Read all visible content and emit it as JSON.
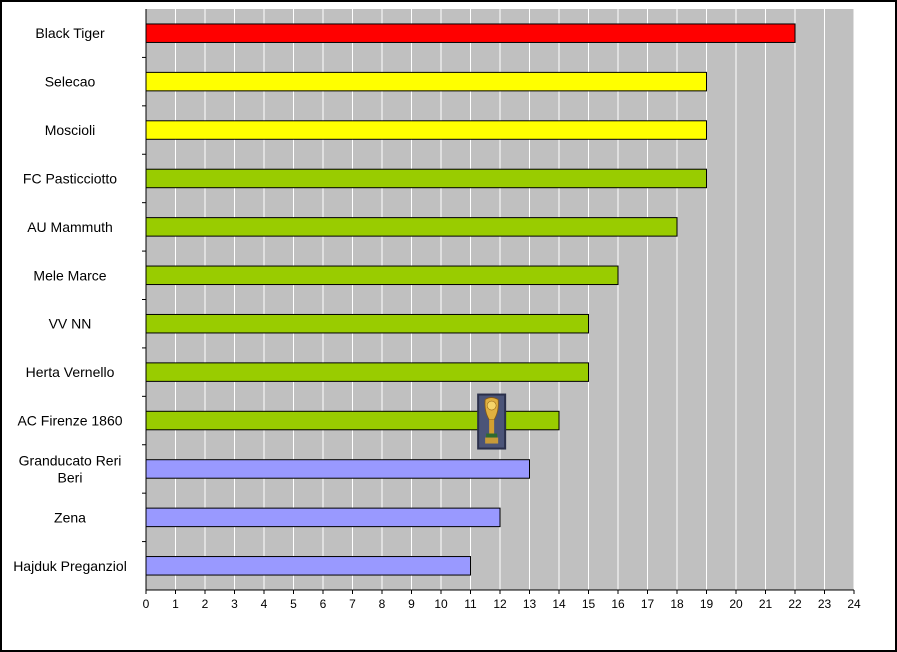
{
  "chart_data": {
    "type": "bar",
    "orientation": "horizontal",
    "categories": [
      "Black Tiger",
      "Selecao",
      "Moscioli",
      "FC Pasticciotto",
      "AU Mammuth",
      "Mele Marce",
      "VV NN",
      "Herta Vernello",
      "AC Firenze 1860",
      "Granducato Reri Beri",
      "Zena",
      "Hajduk Preganziol"
    ],
    "category_display_lines": [
      [
        "Black Tiger"
      ],
      [
        "Selecao"
      ],
      [
        "Moscioli"
      ],
      [
        "FC Pasticciotto"
      ],
      [
        "AU Mammuth"
      ],
      [
        "Mele Marce"
      ],
      [
        "VV NN"
      ],
      [
        "Herta Vernello"
      ],
      [
        "AC Firenze 1860"
      ],
      [
        "Granducato Reri",
        "Beri"
      ],
      [
        "Zena"
      ],
      [
        "Hajduk Preganziol"
      ]
    ],
    "values": [
      22,
      19,
      19,
      19,
      18,
      16,
      15,
      15,
      14,
      13,
      12,
      11
    ],
    "bar_colors": [
      "#ff0000",
      "#ffff00",
      "#ffff00",
      "#99cc00",
      "#99cc00",
      "#99cc00",
      "#99cc00",
      "#99cc00",
      "#99cc00",
      "#9999ff",
      "#9999ff",
      "#9999ff"
    ],
    "xlim": [
      0,
      24
    ],
    "x_ticks": [
      0,
      1,
      2,
      3,
      4,
      5,
      6,
      7,
      8,
      9,
      10,
      11,
      12,
      13,
      14,
      15,
      16,
      17,
      18,
      19,
      20,
      21,
      22,
      23,
      24
    ],
    "grid": true,
    "title": "",
    "xlabel": "",
    "ylabel": "",
    "colors": {
      "plot_background": "#c0c0c0",
      "gridline": "#ffffff",
      "bar_border": "#000000"
    },
    "annotation": {
      "icon": "trophy-icon",
      "category": "AC Firenze 1860",
      "x_value": 11.7
    }
  }
}
